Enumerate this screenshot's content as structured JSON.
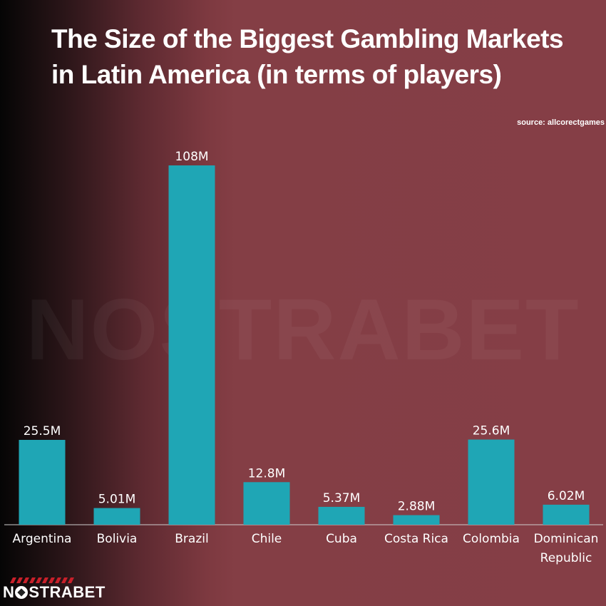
{
  "title": "The Size of the Biggest Gambling Markets in Latin America (in terms of players)",
  "source": "source: allcorectgames",
  "watermark": "NOSTRABET",
  "logo": {
    "text_before": "N",
    "text_after": "STRABET"
  },
  "colors": {
    "bar": "#1fa6b5",
    "text": "#ffffff",
    "background": "#853e46"
  },
  "chart_data": {
    "type": "bar",
    "title": "The Size of the Biggest Gambling Markets in Latin America (in terms of players)",
    "categories": [
      "Argentina",
      "Bolivia",
      "Brazil",
      "Chile",
      "Cuba",
      "Costa Rica",
      "Colombia",
      "Dominican Republic"
    ],
    "values": [
      25.5,
      5.01,
      108,
      12.8,
      5.37,
      2.88,
      25.6,
      6.02
    ],
    "labels": [
      "25.5M",
      "5.01M",
      "108M",
      "12.8M",
      "5.37M",
      "2.88M",
      "25.6M",
      "6.02M"
    ],
    "xlabel": "",
    "ylabel": "",
    "ylim": [
      0,
      108
    ],
    "grid": false,
    "legend": "none"
  }
}
